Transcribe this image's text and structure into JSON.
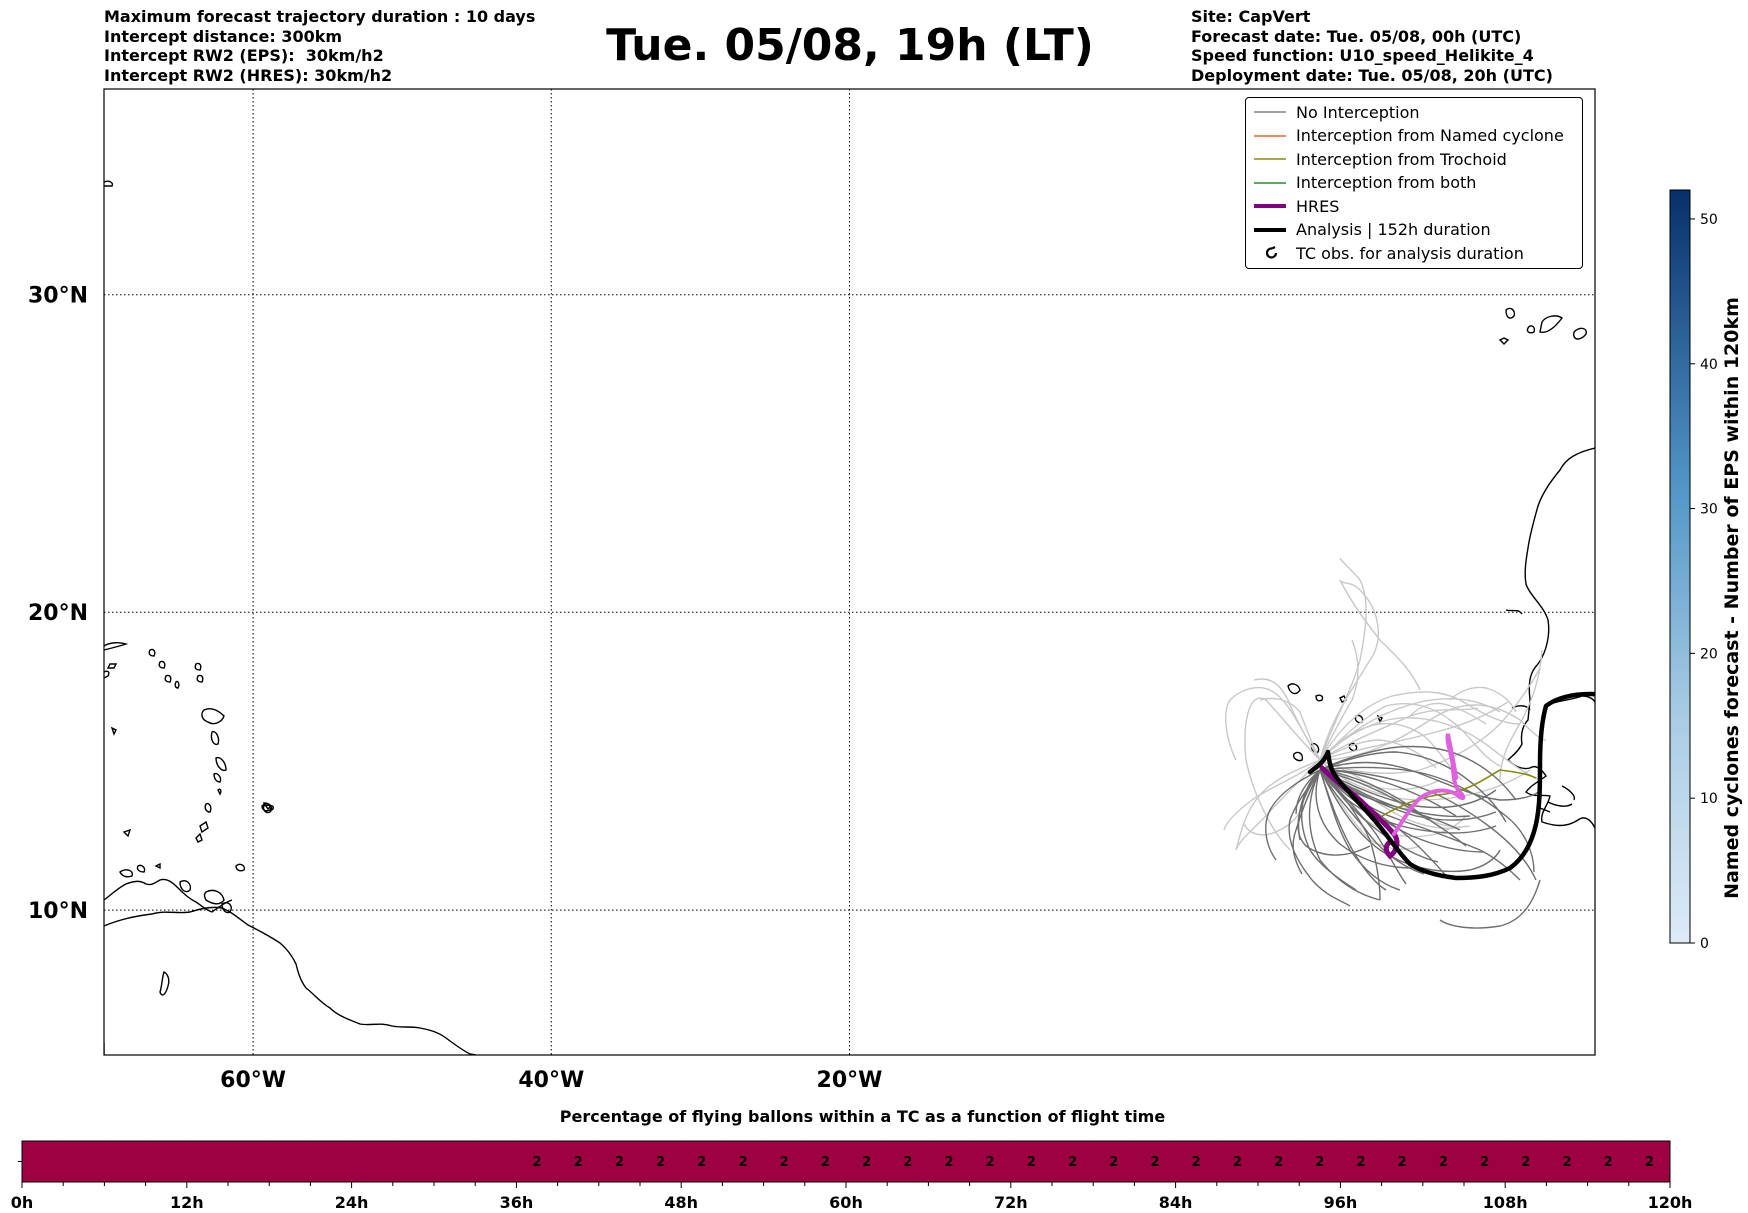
{
  "header_left": [
    "Maximum forecast trajectory duration : 10 days",
    "Intercept distance: 300km",
    "Intercept RW2 (EPS):  30km/h2",
    "Intercept RW2 (HRES): 30km/h2"
  ],
  "header_right": [
    "Site: CapVert",
    "Forecast date: Tue. 05/08, 00h (UTC)",
    "Speed function: U10_speed_Helikite_4",
    "Deployment date: Tue. 05/08, 20h (UTC)"
  ],
  "title": "Tue. 05/08, 19h (LT)",
  "map": {
    "lon_range": [
      -70,
      30
    ],
    "lat_range": [
      5,
      36
    ],
    "lon_ticks": [
      {
        "value": -60,
        "label": "60°W"
      },
      {
        "value": -40,
        "label": "40°W"
      },
      {
        "value": -20,
        "label": "20°W"
      }
    ],
    "lat_ticks": [
      {
        "value": 30,
        "label": "30°N"
      },
      {
        "value": 20,
        "label": "20°N"
      },
      {
        "value": 10,
        "label": "10°N"
      }
    ],
    "grid": "dotted"
  },
  "legend": [
    {
      "label": "No Interception",
      "color": "#808080",
      "style": "thin"
    },
    {
      "label": "Interception from Named cyclone",
      "color": "#e8622c",
      "style": "thin"
    },
    {
      "label": "Interception from Trochoid",
      "color": "#8a8a10",
      "style": "thin"
    },
    {
      "label": "Interception from both",
      "color": "#2e8b2e",
      "style": "thin"
    },
    {
      "label": "HRES",
      "color": "#800080",
      "style": "thick"
    },
    {
      "label": "Analysis | 152h duration",
      "color": "#000000",
      "style": "thick"
    },
    {
      "label": "TC obs. for analysis duration",
      "color": "#000000",
      "style": "symbol"
    }
  ],
  "colorbar": {
    "label": "Named cyclones forecast - Number of EPS within 120km",
    "ticks": [
      0,
      10,
      20,
      30,
      40,
      50
    ],
    "range": [
      0,
      52
    ],
    "colors": [
      "#deebf7",
      "#08306b"
    ]
  },
  "chart_data": {
    "type": "heatmap",
    "title": "Percentage of flying ballons within a TC as a function of flight time",
    "x_unit": "h",
    "x_ticks": [
      "0h",
      "12h",
      "24h",
      "36h",
      "48h",
      "60h",
      "72h",
      "84h",
      "96h",
      "108h",
      "120h"
    ],
    "xlim": [
      0,
      120
    ],
    "time_step_h": 3,
    "values": [
      null,
      null,
      null,
      null,
      null,
      null,
      null,
      null,
      null,
      null,
      null,
      null,
      2,
      2,
      2,
      2,
      2,
      2,
      2,
      2,
      2,
      2,
      2,
      2,
      2,
      2,
      2,
      2,
      2,
      2,
      2,
      2,
      2,
      2,
      2,
      2,
      2,
      2,
      2,
      2
    ],
    "cell_color": "#9e0142"
  }
}
